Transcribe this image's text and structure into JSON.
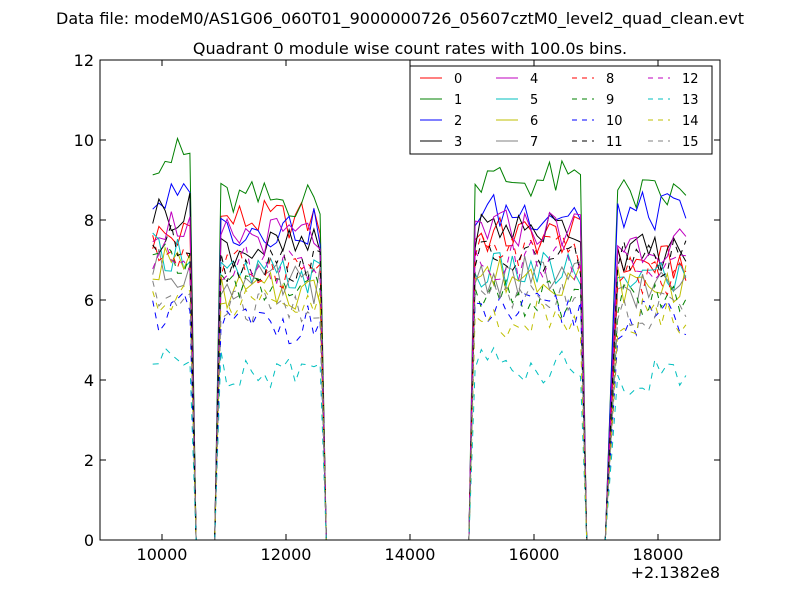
{
  "suptitle": "Data file: modeM0/AS1G06_060T01_9000000726_05607cztM0_level2_quad_clean.evt",
  "chart_data": {
    "type": "line",
    "title": "Quadrant 0 module wise count rates with 100.0s bins.",
    "xlabel": "",
    "ylabel": "",
    "xlim": [
      9000,
      19000
    ],
    "ylim": [
      0,
      12
    ],
    "x_offset_label": "+2.1382e8",
    "xticks": [
      10000,
      12000,
      14000,
      16000,
      18000
    ],
    "yticks": [
      0,
      2,
      4,
      6,
      8,
      10,
      12
    ],
    "x_segments": [
      {
        "start": 9850,
        "end": 10450,
        "step": 100
      },
      {
        "start": 10950,
        "end": 12550,
        "step": 100
      },
      {
        "start": 15050,
        "end": 16750,
        "step": 100
      },
      {
        "start": 17350,
        "end": 18450,
        "step": 100
      }
    ],
    "drop_points": [
      10550,
      10650,
      10750,
      10850,
      12650,
      12750,
      14750,
      14850,
      14950,
      16850,
      16950,
      17050,
      17150
    ],
    "series": [
      {
        "name": "0",
        "color": "#ff0000",
        "dash": "solid",
        "levels": [
          7.6,
          8.0,
          7.6,
          6.9
        ]
      },
      {
        "name": "1",
        "color": "#008000",
        "dash": "solid",
        "levels": [
          9.6,
          8.5,
          9.0,
          8.6
        ]
      },
      {
        "name": "2",
        "color": "#0000ff",
        "dash": "solid",
        "levels": [
          8.5,
          7.8,
          8.2,
          8.2
        ]
      },
      {
        "name": "3",
        "color": "#000000",
        "dash": "solid",
        "levels": [
          8.2,
          7.3,
          7.8,
          7.2
        ]
      },
      {
        "name": "4",
        "color": "#bf00bf",
        "dash": "solid",
        "levels": [
          7.9,
          7.6,
          7.8,
          7.4
        ]
      },
      {
        "name": "5",
        "color": "#00bfbf",
        "dash": "solid",
        "levels": [
          7.2,
          6.6,
          6.7,
          6.6
        ]
      },
      {
        "name": "6",
        "color": "#bfbf00",
        "dash": "solid",
        "levels": [
          6.9,
          6.2,
          6.6,
          6.4
        ]
      },
      {
        "name": "7",
        "color": "#808080",
        "dash": "solid",
        "levels": [
          6.8,
          6.4,
          6.6,
          6.3
        ]
      },
      {
        "name": "8",
        "color": "#ff0000",
        "dash": "dashed",
        "levels": [
          7.2,
          6.8,
          7.2,
          6.6
        ]
      },
      {
        "name": "9",
        "color": "#008000",
        "dash": "dashed",
        "levels": [
          6.9,
          6.3,
          6.0,
          6.0
        ]
      },
      {
        "name": "10",
        "color": "#0000ff",
        "dash": "dashed",
        "levels": [
          5.7,
          5.4,
          5.7,
          5.5
        ]
      },
      {
        "name": "11",
        "color": "#000000",
        "dash": "dashed",
        "levels": [
          7.4,
          6.9,
          7.0,
          7.0
        ]
      },
      {
        "name": "12",
        "color": "#bf00bf",
        "dash": "dashed",
        "levels": [
          7.0,
          6.9,
          7.0,
          6.8
        ]
      },
      {
        "name": "13",
        "color": "#00bfbf",
        "dash": "dashed",
        "levels": [
          4.4,
          4.3,
          4.4,
          4.1
        ]
      },
      {
        "name": "14",
        "color": "#bfbf00",
        "dash": "dashed",
        "levels": [
          6.1,
          5.8,
          5.5,
          5.6
        ]
      },
      {
        "name": "15",
        "color": "#808080",
        "dash": "dashed",
        "levels": [
          6.0,
          5.8,
          6.2,
          5.7
        ]
      }
    ],
    "legend": {
      "position": "top-right",
      "columns": 4
    }
  }
}
